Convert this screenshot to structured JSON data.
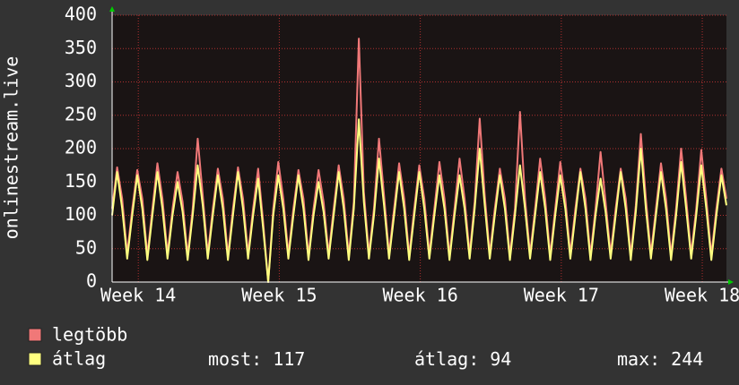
{
  "chart_data": {
    "type": "line",
    "y_label": "onlinestream.live",
    "xlim": [
      0,
      30.5
    ],
    "xticks": [
      {
        "value": 1.3,
        "label": "Week 14"
      },
      {
        "value": 8.3,
        "label": "Week 15"
      },
      {
        "value": 15.3,
        "label": "Week 16"
      },
      {
        "value": 22.3,
        "label": "Week 17"
      },
      {
        "value": 29.3,
        "label": "Week 18"
      }
    ],
    "ylim": [
      0,
      400
    ],
    "yticks": [
      0,
      50,
      100,
      150,
      200,
      250,
      300,
      350,
      400
    ],
    "grid": true,
    "x": [
      0,
      0.25,
      0.5,
      0.75,
      1,
      1.25,
      1.5,
      1.75,
      2,
      2.25,
      2.5,
      2.75,
      3,
      3.25,
      3.5,
      3.75,
      4,
      4.25,
      4.5,
      4.75,
      5,
      5.25,
      5.5,
      5.75,
      6,
      6.25,
      6.5,
      6.75,
      7,
      7.25,
      7.5,
      7.75,
      8,
      8.25,
      8.5,
      8.75,
      9,
      9.25,
      9.5,
      9.75,
      10,
      10.25,
      10.5,
      10.75,
      11,
      11.25,
      11.5,
      11.75,
      12,
      12.25,
      12.5,
      12.75,
      13,
      13.25,
      13.5,
      13.75,
      14,
      14.25,
      14.5,
      14.75,
      15,
      15.25,
      15.5,
      15.75,
      16,
      16.25,
      16.5,
      16.75,
      17,
      17.25,
      17.5,
      17.75,
      18,
      18.25,
      18.5,
      18.75,
      19,
      19.25,
      19.5,
      19.75,
      20,
      20.25,
      20.5,
      20.75,
      21,
      21.25,
      21.5,
      21.75,
      22,
      22.25,
      22.5,
      22.75,
      23,
      23.25,
      23.5,
      23.75,
      24,
      24.25,
      24.5,
      24.75,
      25,
      25.25,
      25.5,
      25.75,
      26,
      26.25,
      26.5,
      26.75,
      27,
      27.25,
      27.5,
      27.75,
      28,
      28.25,
      28.5,
      28.75,
      29,
      29.25,
      29.5,
      29.75,
      30,
      30.25,
      30.5
    ],
    "series": [
      {
        "name": "legtöbb",
        "color": "#f07878",
        "values": [
          110,
          172,
          125,
          42,
          110,
          168,
          125,
          40,
          110,
          178,
          125,
          42,
          110,
          165,
          120,
          40,
          110,
          215,
          130,
          42,
          110,
          170,
          125,
          40,
          110,
          172,
          125,
          42,
          110,
          170,
          90,
          0,
          110,
          180,
          125,
          42,
          110,
          168,
          125,
          40,
          110,
          168,
          120,
          42,
          110,
          175,
          125,
          40,
          120,
          365,
          135,
          42,
          110,
          215,
          130,
          42,
          110,
          178,
          125,
          40,
          110,
          175,
          125,
          42,
          110,
          180,
          125,
          40,
          110,
          185,
          125,
          42,
          120,
          245,
          130,
          42,
          110,
          170,
          125,
          40,
          110,
          255,
          125,
          42,
          110,
          185,
          125,
          40,
          110,
          180,
          125,
          42,
          110,
          170,
          125,
          40,
          110,
          195,
          120,
          42,
          110,
          170,
          125,
          40,
          115,
          222,
          125,
          42,
          110,
          178,
          125,
          40,
          110,
          200,
          125,
          42,
          110,
          198,
          125,
          40,
          110,
          170,
          125
        ]
      },
      {
        "name": "átlag",
        "color": "#ffff80",
        "values": [
          100,
          165,
          110,
          35,
          100,
          160,
          110,
          33,
          100,
          165,
          110,
          35,
          100,
          150,
          105,
          33,
          100,
          175,
          115,
          35,
          100,
          160,
          110,
          33,
          100,
          165,
          110,
          35,
          100,
          155,
          80,
          0,
          100,
          160,
          110,
          35,
          100,
          160,
          110,
          33,
          100,
          150,
          105,
          35,
          100,
          165,
          110,
          33,
          110,
          244,
          120,
          35,
          100,
          185,
          115,
          35,
          100,
          165,
          110,
          33,
          100,
          165,
          110,
          35,
          100,
          160,
          110,
          33,
          100,
          160,
          110,
          35,
          110,
          200,
          115,
          35,
          100,
          160,
          110,
          33,
          100,
          175,
          110,
          35,
          100,
          165,
          110,
          33,
          100,
          160,
          110,
          35,
          100,
          165,
          110,
          33,
          100,
          155,
          105,
          35,
          100,
          165,
          110,
          33,
          105,
          200,
          110,
          35,
          100,
          165,
          110,
          33,
          100,
          180,
          110,
          35,
          100,
          175,
          110,
          33,
          100,
          160,
          115
        ]
      }
    ],
    "stats": [
      {
        "label": "most:",
        "value": 117
      },
      {
        "label": "átlag:",
        "value": 94
      },
      {
        "label": "max:",
        "value": 244
      }
    ]
  }
}
